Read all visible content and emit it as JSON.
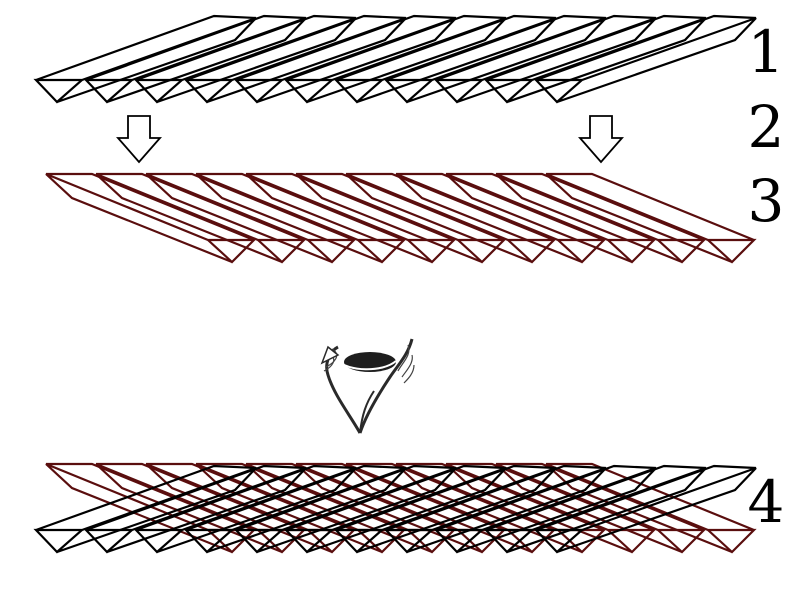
{
  "labels": {
    "one": "1",
    "two": "2",
    "three": "3",
    "four": "4"
  },
  "colors": {
    "layer_black": "#000000",
    "layer_red": "#5a0e0e",
    "arrow_fill": "#ffffff",
    "icon_ink": "#2a2a2a"
  },
  "layers": {
    "row1": {
      "count": 11,
      "color": "black"
    },
    "row3": {
      "count": 11,
      "color": "dark-red"
    },
    "row4": {
      "count": 22,
      "colors": [
        "dark-red",
        "black"
      ]
    }
  },
  "icons": {
    "arrow": "down-arrow-icon",
    "folding": "folding-symbol-icon"
  }
}
